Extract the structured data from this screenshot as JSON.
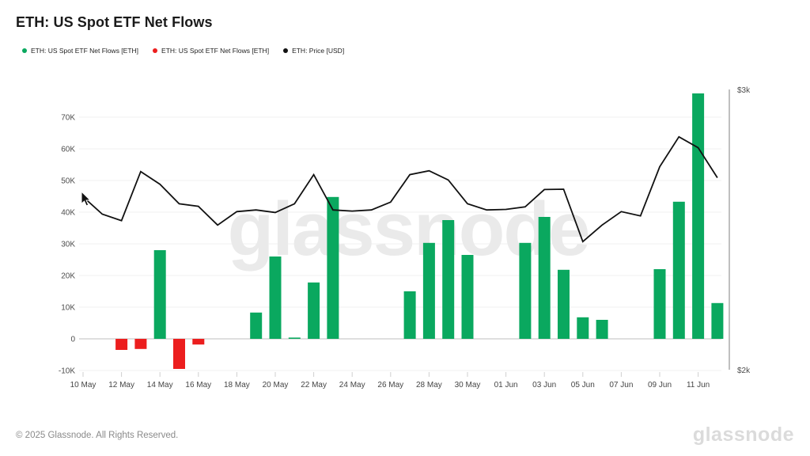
{
  "header": {
    "title": "ETH: US Spot ETF Net Flows"
  },
  "legend": [
    {
      "label": "ETH: US Spot ETF Net Flows [ETH]",
      "color": "#0aa85f"
    },
    {
      "label": "ETH: US Spot ETF Net Flows [ETH]",
      "color": "#ec1e1e"
    },
    {
      "label": "ETH: Price [USD]",
      "color": "#111111"
    }
  ],
  "chart_data": {
    "type": "mixed-bar-line",
    "title": "ETH: US Spot ETF Net Flows",
    "watermark": "glassnode",
    "grid": true,
    "x": [
      "10 May",
      "11 May",
      "12 May",
      "13 May",
      "14 May",
      "15 May",
      "16 May",
      "17 May",
      "18 May",
      "19 May",
      "20 May",
      "21 May",
      "22 May",
      "23 May",
      "24 May",
      "25 May",
      "26 May",
      "27 May",
      "28 May",
      "29 May",
      "30 May",
      "31 May",
      "01 Jun",
      "02 Jun",
      "03 Jun",
      "04 Jun",
      "05 Jun",
      "06 Jun",
      "07 Jun",
      "08 Jun",
      "09 Jun",
      "10 Jun",
      "11 Jun",
      "12 Jun"
    ],
    "x_tick_labels": [
      "10 May",
      "12 May",
      "14 May",
      "16 May",
      "18 May",
      "20 May",
      "22 May",
      "24 May",
      "26 May",
      "28 May",
      "30 May",
      "01 Jun",
      "03 Jun",
      "05 Jun",
      "07 Jun",
      "09 Jun",
      "11 Jun"
    ],
    "series": [
      {
        "name": "ETH: US Spot ETF Net Flows [ETH]",
        "type": "bar",
        "unit": "ETH",
        "axis": "left",
        "positive_color": "#0aa85f",
        "negative_color": "#ec1e1e",
        "values": [
          null,
          null,
          -3500,
          -3200,
          28000,
          -9500,
          -1800,
          null,
          null,
          8300,
          26000,
          400,
          17800,
          44800,
          null,
          null,
          null,
          15000,
          30300,
          37500,
          26500,
          null,
          null,
          30300,
          38500,
          21800,
          6800,
          6000,
          null,
          null,
          22000,
          43300,
          77500,
          11300
        ]
      },
      {
        "name": "ETH: Price [USD]",
        "type": "line",
        "unit": "USD",
        "axis": "right",
        "color": "#111111",
        "values": [
          2617,
          2555,
          2532,
          2707,
          2662,
          2592,
          2583,
          2516,
          2564,
          2570,
          2561,
          2592,
          2696,
          2570,
          2566,
          2570,
          2598,
          2696,
          2710,
          2677,
          2592,
          2570,
          2572,
          2581,
          2643,
          2644,
          2457,
          2516,
          2564,
          2549,
          2724,
          2831,
          2792,
          2685
        ]
      }
    ],
    "left_axis": {
      "unit": "ETH",
      "range": [
        -13000,
        79500
      ],
      "ticks": [
        {
          "value": -10000,
          "label": "-10K"
        },
        {
          "value": 0,
          "label": "0"
        },
        {
          "value": 10000,
          "label": "10K"
        },
        {
          "value": 20000,
          "label": "20K"
        },
        {
          "value": 30000,
          "label": "30K"
        },
        {
          "value": 40000,
          "label": "40K"
        },
        {
          "value": 50000,
          "label": "50K"
        },
        {
          "value": 60000,
          "label": "60K"
        },
        {
          "value": 70000,
          "label": "70K"
        }
      ]
    },
    "right_axis": {
      "unit": "USD",
      "range": [
        2000,
        3000
      ],
      "ticks": [
        {
          "value": 3000,
          "label": "$3k"
        },
        {
          "value": 2000,
          "label": "$2k"
        }
      ]
    },
    "legend_position": "top-left"
  },
  "footer": {
    "copyright": "© 2025 Glassnode. All Rights Reserved.",
    "brand": "glassnode"
  }
}
